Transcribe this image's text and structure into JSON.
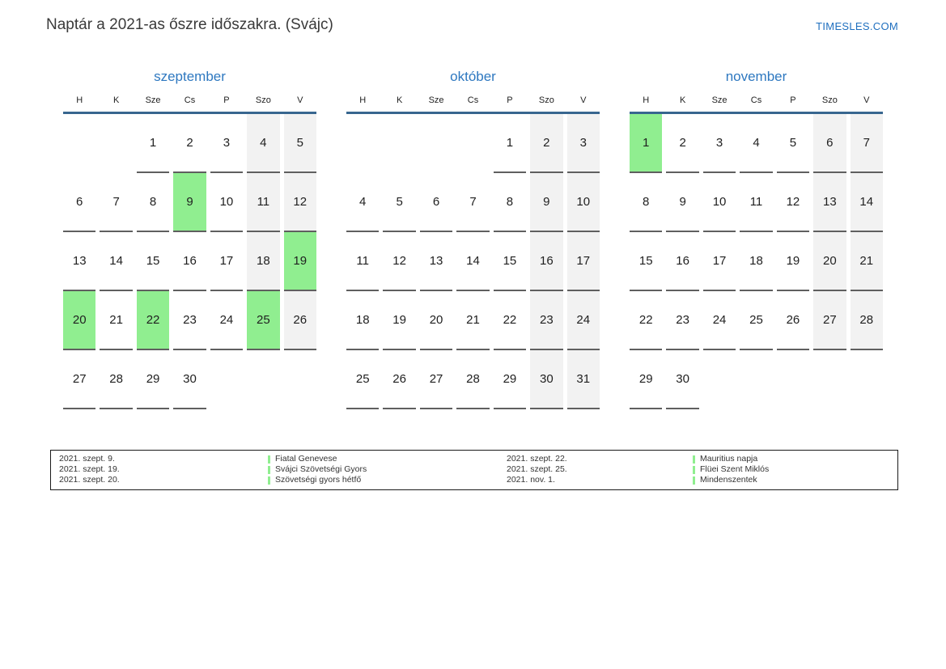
{
  "header": {
    "title": "Naptár a 2021-as őszre időszakra. (Svájc)",
    "site_link": "TIMESLES.COM"
  },
  "colors": {
    "accent_blue": "#2e78c0",
    "link_blue": "#1f6fbf",
    "header_rule_blue": "#38668f",
    "holiday_green": "#90ee90",
    "weekend_gray": "#f2f2f2",
    "cell_rule_gray": "#5f5f5f",
    "text_dark": "#333333"
  },
  "weekday_labels": [
    "H",
    "K",
    "Sze",
    "Cs",
    "P",
    "Szo",
    "V"
  ],
  "months": [
    {
      "name": "szeptember",
      "cells": [
        {
          "day": "",
          "type": "empty"
        },
        {
          "day": "",
          "type": "empty"
        },
        {
          "day": "1",
          "type": "normal"
        },
        {
          "day": "2",
          "type": "normal"
        },
        {
          "day": "3",
          "type": "normal"
        },
        {
          "day": "4",
          "type": "weekend"
        },
        {
          "day": "5",
          "type": "weekend"
        },
        {
          "day": "6",
          "type": "normal"
        },
        {
          "day": "7",
          "type": "normal"
        },
        {
          "day": "8",
          "type": "normal"
        },
        {
          "day": "9",
          "type": "holiday"
        },
        {
          "day": "10",
          "type": "normal"
        },
        {
          "day": "11",
          "type": "weekend"
        },
        {
          "day": "12",
          "type": "weekend"
        },
        {
          "day": "13",
          "type": "normal"
        },
        {
          "day": "14",
          "type": "normal"
        },
        {
          "day": "15",
          "type": "normal"
        },
        {
          "day": "16",
          "type": "normal"
        },
        {
          "day": "17",
          "type": "normal"
        },
        {
          "day": "18",
          "type": "weekend"
        },
        {
          "day": "19",
          "type": "holiday"
        },
        {
          "day": "20",
          "type": "holiday"
        },
        {
          "day": "21",
          "type": "normal"
        },
        {
          "day": "22",
          "type": "holiday"
        },
        {
          "day": "23",
          "type": "normal"
        },
        {
          "day": "24",
          "type": "normal"
        },
        {
          "day": "25",
          "type": "holiday"
        },
        {
          "day": "26",
          "type": "weekend"
        },
        {
          "day": "27",
          "type": "normal"
        },
        {
          "day": "28",
          "type": "normal"
        },
        {
          "day": "29",
          "type": "normal"
        },
        {
          "day": "30",
          "type": "normal"
        },
        {
          "day": "",
          "type": "empty"
        },
        {
          "day": "",
          "type": "empty"
        },
        {
          "day": "",
          "type": "empty"
        }
      ]
    },
    {
      "name": "október",
      "cells": [
        {
          "day": "",
          "type": "empty"
        },
        {
          "day": "",
          "type": "empty"
        },
        {
          "day": "",
          "type": "empty"
        },
        {
          "day": "",
          "type": "empty"
        },
        {
          "day": "1",
          "type": "normal"
        },
        {
          "day": "2",
          "type": "weekend"
        },
        {
          "day": "3",
          "type": "weekend"
        },
        {
          "day": "4",
          "type": "normal"
        },
        {
          "day": "5",
          "type": "normal"
        },
        {
          "day": "6",
          "type": "normal"
        },
        {
          "day": "7",
          "type": "normal"
        },
        {
          "day": "8",
          "type": "normal"
        },
        {
          "day": "9",
          "type": "weekend"
        },
        {
          "day": "10",
          "type": "weekend"
        },
        {
          "day": "11",
          "type": "normal"
        },
        {
          "day": "12",
          "type": "normal"
        },
        {
          "day": "13",
          "type": "normal"
        },
        {
          "day": "14",
          "type": "normal"
        },
        {
          "day": "15",
          "type": "normal"
        },
        {
          "day": "16",
          "type": "weekend"
        },
        {
          "day": "17",
          "type": "weekend"
        },
        {
          "day": "18",
          "type": "normal"
        },
        {
          "day": "19",
          "type": "normal"
        },
        {
          "day": "20",
          "type": "normal"
        },
        {
          "day": "21",
          "type": "normal"
        },
        {
          "day": "22",
          "type": "normal"
        },
        {
          "day": "23",
          "type": "weekend"
        },
        {
          "day": "24",
          "type": "weekend"
        },
        {
          "day": "25",
          "type": "normal"
        },
        {
          "day": "26",
          "type": "normal"
        },
        {
          "day": "27",
          "type": "normal"
        },
        {
          "day": "28",
          "type": "normal"
        },
        {
          "day": "29",
          "type": "normal"
        },
        {
          "day": "30",
          "type": "weekend"
        },
        {
          "day": "31",
          "type": "weekend"
        }
      ]
    },
    {
      "name": "november",
      "cells": [
        {
          "day": "1",
          "type": "holiday"
        },
        {
          "day": "2",
          "type": "normal"
        },
        {
          "day": "3",
          "type": "normal"
        },
        {
          "day": "4",
          "type": "normal"
        },
        {
          "day": "5",
          "type": "normal"
        },
        {
          "day": "6",
          "type": "weekend"
        },
        {
          "day": "7",
          "type": "weekend"
        },
        {
          "day": "8",
          "type": "normal"
        },
        {
          "day": "9",
          "type": "normal"
        },
        {
          "day": "10",
          "type": "normal"
        },
        {
          "day": "11",
          "type": "normal"
        },
        {
          "day": "12",
          "type": "normal"
        },
        {
          "day": "13",
          "type": "weekend"
        },
        {
          "day": "14",
          "type": "weekend"
        },
        {
          "day": "15",
          "type": "normal"
        },
        {
          "day": "16",
          "type": "normal"
        },
        {
          "day": "17",
          "type": "normal"
        },
        {
          "day": "18",
          "type": "normal"
        },
        {
          "day": "19",
          "type": "normal"
        },
        {
          "day": "20",
          "type": "weekend"
        },
        {
          "day": "21",
          "type": "weekend"
        },
        {
          "day": "22",
          "type": "normal"
        },
        {
          "day": "23",
          "type": "normal"
        },
        {
          "day": "24",
          "type": "normal"
        },
        {
          "day": "25",
          "type": "normal"
        },
        {
          "day": "26",
          "type": "normal"
        },
        {
          "day": "27",
          "type": "weekend"
        },
        {
          "day": "28",
          "type": "weekend"
        },
        {
          "day": "29",
          "type": "normal"
        },
        {
          "day": "30",
          "type": "normal"
        },
        {
          "day": "",
          "type": "empty"
        },
        {
          "day": "",
          "type": "empty"
        },
        {
          "day": "",
          "type": "empty"
        },
        {
          "day": "",
          "type": "empty"
        },
        {
          "day": "",
          "type": "empty"
        }
      ]
    }
  ],
  "legend": {
    "left": [
      {
        "date": "2021. szept. 9.",
        "name": "Fiatal Genevese"
      },
      {
        "date": "2021. szept. 19.",
        "name": "Svájci Szövetségi Gyors"
      },
      {
        "date": "2021. szept. 20.",
        "name": "Szövetségi gyors hétfő"
      }
    ],
    "right": [
      {
        "date": "2021. szept. 22.",
        "name": "Mauritius napja"
      },
      {
        "date": "2021. szept. 25.",
        "name": "Flüei Szent Miklós"
      },
      {
        "date": "2021. nov. 1.",
        "name": "Mindenszentek"
      }
    ]
  }
}
